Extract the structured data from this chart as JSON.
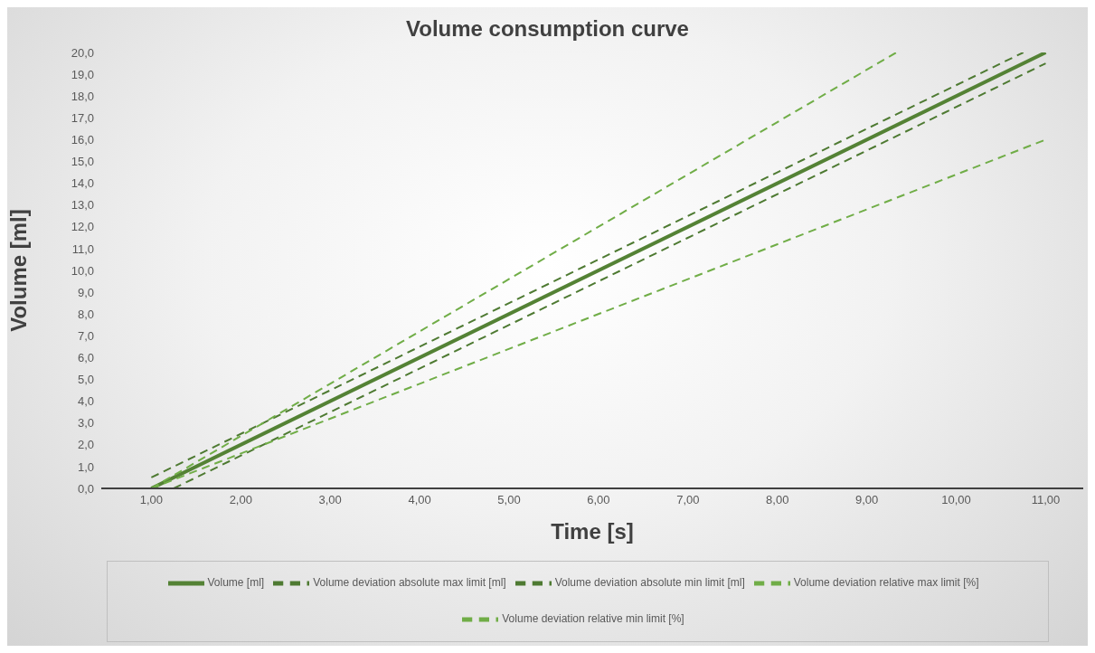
{
  "chart_data": {
    "type": "line",
    "title": "Volume consumption curve",
    "xlabel": "Time [s]",
    "ylabel": "Volume [ml]",
    "xlim": [
      0.44,
      11.42
    ],
    "xticks": [
      {
        "value": 1,
        "label": "1,00"
      },
      {
        "value": 2,
        "label": "2,00"
      },
      {
        "value": 3,
        "label": "3,00"
      },
      {
        "value": 4,
        "label": "4,00"
      },
      {
        "value": 5,
        "label": "5,00"
      },
      {
        "value": 6,
        "label": "6,00"
      },
      {
        "value": 7,
        "label": "7,00"
      },
      {
        "value": 8,
        "label": "8,00"
      },
      {
        "value": 9,
        "label": "9,00"
      },
      {
        "value": 10,
        "label": "10,00"
      },
      {
        "value": 11,
        "label": "11,00"
      }
    ],
    "ylim": [
      0,
      20
    ],
    "yticks": [
      {
        "value": 0,
        "label": "0,0"
      },
      {
        "value": 1,
        "label": "1,0"
      },
      {
        "value": 2,
        "label": "2,0"
      },
      {
        "value": 3,
        "label": "3,0"
      },
      {
        "value": 4,
        "label": "4,0"
      },
      {
        "value": 5,
        "label": "5,0"
      },
      {
        "value": 6,
        "label": "6,0"
      },
      {
        "value": 7,
        "label": "7,0"
      },
      {
        "value": 8,
        "label": "8,0"
      },
      {
        "value": 9,
        "label": "9,0"
      },
      {
        "value": 10,
        "label": "10,0"
      },
      {
        "value": 11,
        "label": "11,0"
      },
      {
        "value": 12,
        "label": "12,0"
      },
      {
        "value": 13,
        "label": "13,0"
      },
      {
        "value": 14,
        "label": "14,0"
      },
      {
        "value": 15,
        "label": "15,0"
      },
      {
        "value": 16,
        "label": "16,0"
      },
      {
        "value": 17,
        "label": "17,0"
      },
      {
        "value": 18,
        "label": "18,0"
      },
      {
        "value": 19,
        "label": "19,0"
      },
      {
        "value": 20,
        "label": "20,0"
      }
    ],
    "legend": "bottom",
    "marker": "none",
    "series": [
      {
        "name": "Volume [ml]",
        "color": "#548235",
        "line_style": "solid",
        "x": [
          1,
          11
        ],
        "values": [
          0,
          20
        ]
      },
      {
        "name": "Volume deviation absolute max limit [ml]",
        "color": "#4e7a32",
        "line_style": "dashed",
        "x": [
          1,
          10.75
        ],
        "values": [
          0.5,
          20
        ]
      },
      {
        "name": "Volume deviation absolute min limit [ml]",
        "color": "#4e7a32",
        "line_style": "dashed",
        "x": [
          1.25,
          11
        ],
        "values": [
          0,
          19.5
        ]
      },
      {
        "name": "Volume deviation relative max limit [%]",
        "color": "#70ad47",
        "line_style": "dashed",
        "x": [
          1,
          9.33
        ],
        "values": [
          0,
          20
        ]
      },
      {
        "name": "Volume deviation relative min limit [%]",
        "color": "#70ad47",
        "line_style": "dashed",
        "x": [
          1,
          11
        ],
        "values": [
          0,
          16
        ]
      }
    ]
  }
}
